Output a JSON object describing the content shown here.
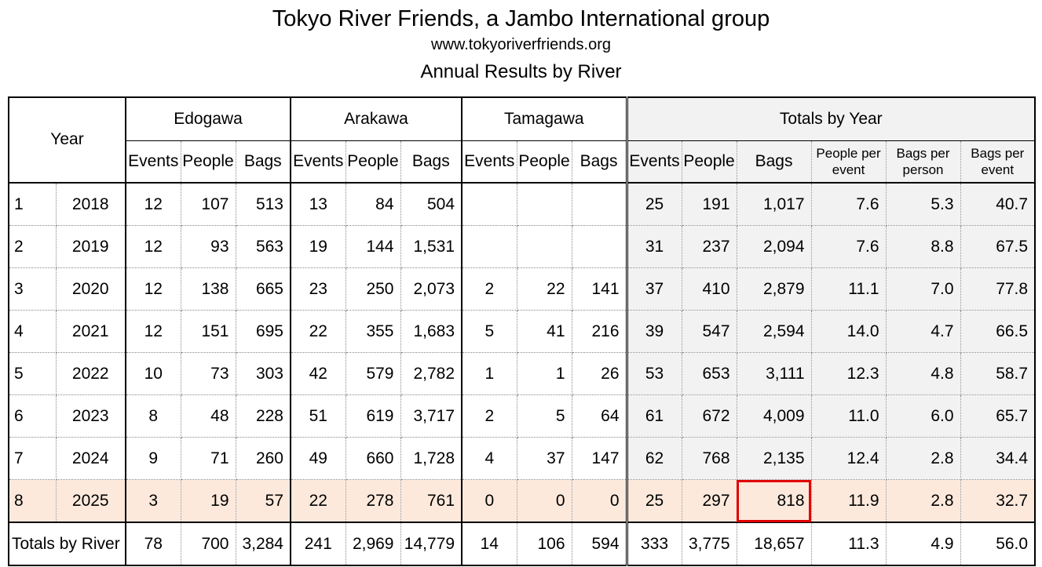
{
  "header": {
    "title": "Tokyo River Friends, a Jambo International group",
    "url": "www.tokyoriverfriends.org",
    "subtitle": "Annual Results by River"
  },
  "table": {
    "year_label": "Year",
    "groups": [
      "Edogawa",
      "Arakawa",
      "Tamagawa",
      "Totals by Year"
    ],
    "river_cols": [
      "Events",
      "People",
      "Bags"
    ],
    "total_cols": [
      "Events",
      "People",
      "Bags",
      "People per event",
      "Bags per person",
      "Bags per event"
    ],
    "rows": [
      {
        "rank": "1",
        "year": "2018",
        "edo": [
          "12",
          "107",
          "513"
        ],
        "ara": [
          "13",
          "84",
          "504"
        ],
        "tama": [
          "",
          "",
          ""
        ],
        "tot": [
          "25",
          "191",
          "1,017",
          "7.6",
          "5.3",
          "40.7"
        ]
      },
      {
        "rank": "2",
        "year": "2019",
        "edo": [
          "12",
          "93",
          "563"
        ],
        "ara": [
          "19",
          "144",
          "1,531"
        ],
        "tama": [
          "",
          "",
          ""
        ],
        "tot": [
          "31",
          "237",
          "2,094",
          "7.6",
          "8.8",
          "67.5"
        ]
      },
      {
        "rank": "3",
        "year": "2020",
        "edo": [
          "12",
          "138",
          "665"
        ],
        "ara": [
          "23",
          "250",
          "2,073"
        ],
        "tama": [
          "2",
          "22",
          "141"
        ],
        "tot": [
          "37",
          "410",
          "2,879",
          "11.1",
          "7.0",
          "77.8"
        ]
      },
      {
        "rank": "4",
        "year": "2021",
        "edo": [
          "12",
          "151",
          "695"
        ],
        "ara": [
          "22",
          "355",
          "1,683"
        ],
        "tama": [
          "5",
          "41",
          "216"
        ],
        "tot": [
          "39",
          "547",
          "2,594",
          "14.0",
          "4.7",
          "66.5"
        ]
      },
      {
        "rank": "5",
        "year": "2022",
        "edo": [
          "10",
          "73",
          "303"
        ],
        "ara": [
          "42",
          "579",
          "2,782"
        ],
        "tama": [
          "1",
          "1",
          "26"
        ],
        "tot": [
          "53",
          "653",
          "3,111",
          "12.3",
          "4.8",
          "58.7"
        ]
      },
      {
        "rank": "6",
        "year": "2023",
        "edo": [
          "8",
          "48",
          "228"
        ],
        "ara": [
          "51",
          "619",
          "3,717"
        ],
        "tama": [
          "2",
          "5",
          "64"
        ],
        "tot": [
          "61",
          "672",
          "4,009",
          "11.0",
          "6.0",
          "65.7"
        ]
      },
      {
        "rank": "7",
        "year": "2024",
        "edo": [
          "9",
          "71",
          "260"
        ],
        "ara": [
          "49",
          "660",
          "1,728"
        ],
        "tama": [
          "4",
          "37",
          "147"
        ],
        "tot": [
          "62",
          "768",
          "2,135",
          "12.4",
          "2.8",
          "34.4"
        ]
      },
      {
        "rank": "8",
        "year": "2025",
        "edo": [
          "3",
          "19",
          "57"
        ],
        "ara": [
          "22",
          "278",
          "761"
        ],
        "tama": [
          "0",
          "0",
          "0"
        ],
        "tot": [
          "25",
          "297",
          "818",
          "11.9",
          "2.8",
          "32.7"
        ]
      }
    ],
    "totals": {
      "label": "Totals by River",
      "edo": [
        "78",
        "700",
        "3,284"
      ],
      "ara": [
        "241",
        "2,969",
        "14,779"
      ],
      "tama": [
        "14",
        "106",
        "594"
      ],
      "tot": [
        "333",
        "3,775",
        "18,657",
        "11.3",
        "4.9",
        "56.0"
      ]
    }
  },
  "colors": {
    "highlight_row": "#fce9dc",
    "totals_column_bg": "#f2f2f2",
    "selected_cell_border": "#e00000"
  }
}
